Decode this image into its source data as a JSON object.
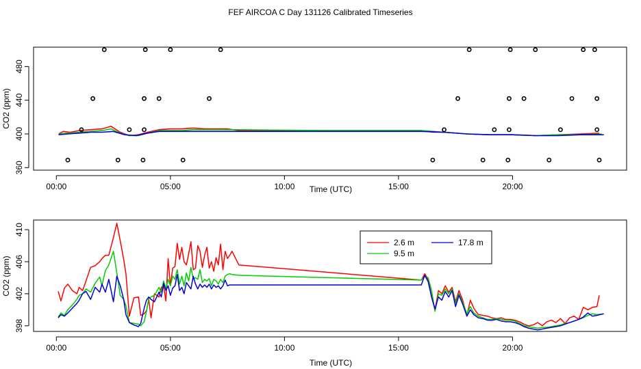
{
  "page_title": "FEF AIRCOA C  Day 131126  Calibrated Timeseries",
  "chart_data": [
    {
      "id": "top",
      "type": "line+scatter",
      "xlabel": "Time (UTC)",
      "ylabel": "CO2 (ppm)",
      "xlim": [
        -1,
        25
      ],
      "ylim": [
        357,
        503
      ],
      "x_ticks": [
        0,
        5,
        10,
        15,
        20
      ],
      "x_tick_labels": [
        "00:00",
        "05:00",
        "10:00",
        "15:00",
        "20:00"
      ],
      "y_ticks": [
        360,
        400,
        440,
        480
      ],
      "y_tick_labels": [
        "360",
        "400",
        "440",
        "480"
      ],
      "series": [
        {
          "name": "2.6 m",
          "color": "#ff0000",
          "x": [
            0.1,
            0.3,
            0.6,
            1.0,
            1.5,
            2.0,
            2.4,
            2.8,
            3.2,
            3.6,
            4.0,
            4.5,
            5.0,
            5.5,
            6.0,
            6.5,
            7.0,
            7.5,
            8.0,
            12.0,
            16.0,
            16.5,
            17.0,
            18.0,
            19.0,
            20.0,
            21.0,
            22.0,
            23.0,
            23.8
          ],
          "y": [
            400,
            403,
            402,
            404,
            405,
            406,
            409,
            402,
            398,
            399,
            402,
            405,
            406,
            406,
            407,
            406,
            406,
            406,
            404,
            404,
            404,
            402,
            402,
            400,
            399,
            399,
            398,
            399,
            400,
            401
          ]
        },
        {
          "name": "9.5 m",
          "color": "#00cc00",
          "x": [
            0.1,
            0.5,
            1.0,
            1.5,
            2.0,
            2.4,
            2.8,
            3.2,
            3.6,
            4.0,
            4.5,
            5.0,
            5.5,
            6.0,
            7.0,
            8.0,
            12.0,
            16.0,
            17.0,
            18.0,
            19.0,
            20.0,
            21.0,
            22.0,
            23.0,
            23.9
          ],
          "y": [
            400,
            401,
            402,
            403,
            404,
            406,
            401,
            398,
            398,
            401,
            404,
            404,
            404,
            405,
            405,
            405,
            404,
            404,
            402,
            400,
            399,
            399,
            398,
            399,
            399,
            400
          ]
        },
        {
          "name": "17.8 m",
          "color": "#0000dd",
          "x": [
            0.1,
            0.5,
            1.0,
            1.5,
            2.0,
            2.5,
            3.0,
            3.5,
            4.0,
            4.5,
            5.0,
            6.0,
            7.0,
            8.0,
            12.0,
            16.0,
            17.0,
            18.0,
            19.0,
            20.0,
            21.0,
            22.0,
            23.0,
            24.0
          ],
          "y": [
            399,
            400,
            401,
            402,
            402,
            403,
            399,
            398,
            401,
            403,
            403,
            403,
            403,
            403,
            403,
            403,
            402,
            400,
            399,
            399,
            398,
            398,
            399,
            399
          ]
        }
      ],
      "points": {
        "x": [
          0.5,
          1.1,
          1.6,
          2.1,
          2.7,
          3.2,
          3.8,
          3.85,
          3.85,
          3.9,
          4.5,
          5.0,
          5.55,
          6.7,
          7.2,
          16.5,
          17.0,
          17.6,
          18.1,
          18.7,
          19.2,
          19.8,
          19.85,
          19.85,
          19.9,
          20.5,
          21.0,
          21.6,
          22.1,
          22.6,
          23.1,
          23.6,
          23.7,
          23.7,
          23.8
        ],
        "y": [
          369,
          405,
          442,
          500,
          369,
          405,
          369,
          405,
          442,
          500,
          442,
          500,
          369,
          442,
          500,
          369,
          405,
          442,
          500,
          369,
          405,
          369,
          405,
          442,
          500,
          442,
          500,
          369,
          405,
          442,
          500,
          500,
          442,
          405,
          369
        ]
      }
    },
    {
      "id": "bottom",
      "type": "line",
      "xlabel": "Time (UTC)",
      "ylabel": "CO2 (ppm)",
      "xlim": [
        -1,
        25
      ],
      "ylim": [
        397.3,
        411.2
      ],
      "x_ticks": [
        0,
        5,
        10,
        15,
        20
      ],
      "x_tick_labels": [
        "00:00",
        "05:00",
        "10:00",
        "15:00",
        "20:00"
      ],
      "y_ticks": [
        398,
        402,
        406,
        410
      ],
      "y_tick_labels": [
        "398",
        "402",
        "406",
        "410"
      ],
      "legend": {
        "entries": [
          "2.6 m",
          "9.5 m",
          "17.8 m"
        ]
      },
      "series": [
        {
          "name": "2.6 m",
          "color": "#ff0000",
          "x": [
            0.08,
            0.2,
            0.35,
            0.5,
            0.7,
            0.9,
            1.0,
            1.15,
            1.3,
            1.5,
            1.7,
            1.9,
            2.0,
            2.15,
            2.3,
            2.5,
            2.65,
            2.8,
            2.95,
            3.05,
            3.2,
            3.4,
            3.6,
            3.7,
            3.85,
            3.95,
            4.05,
            4.15,
            4.3,
            4.5,
            4.6,
            4.7,
            4.8,
            4.9,
            5.0,
            5.1,
            5.2,
            5.3,
            5.4,
            5.5,
            5.6,
            5.7,
            5.8,
            5.9,
            6.0,
            6.1,
            6.2,
            6.3,
            6.4,
            6.5,
            6.6,
            6.7,
            6.8,
            6.9,
            7.0,
            7.1,
            7.2,
            7.3,
            7.4,
            7.5,
            7.6,
            7.7,
            8.0,
            16.0,
            16.15,
            16.3,
            16.45,
            16.6,
            16.75,
            16.9,
            17.05,
            17.2,
            17.35,
            17.5,
            17.65,
            17.8,
            18.0,
            18.15,
            18.3,
            18.5,
            18.7,
            18.9,
            19.1,
            19.3,
            19.5,
            19.7,
            19.9,
            20.1,
            20.3,
            20.5,
            20.7,
            20.9,
            21.1,
            21.3,
            21.5,
            21.7,
            21.9,
            22.1,
            22.3,
            22.5,
            22.7,
            22.9,
            23.1,
            23.3,
            23.5,
            23.7,
            23.8
          ],
          "y": [
            402.3,
            401.1,
            402.7,
            403.2,
            402.4,
            402.0,
            402.8,
            402.4,
            403.6,
            405.3,
            405.5,
            406.0,
            406.4,
            406.8,
            406.8,
            409.0,
            410.8,
            408.6,
            406.3,
            404.5,
            399.2,
            401.5,
            401.6,
            399.3,
            399.5,
            399.9,
            401.3,
            399.0,
            402.0,
            401.6,
            402.8,
            403.0,
            401.1,
            406.4,
            403.0,
            405.2,
            405.4,
            408.3,
            406.3,
            407.8,
            406.0,
            405.6,
            407.0,
            408.5,
            405.0,
            405.2,
            408.0,
            407.3,
            405.3,
            406.8,
            407.8,
            405.2,
            406.0,
            404.8,
            406.5,
            405.6,
            408.2,
            405.0,
            407.3,
            406.4,
            406.8,
            407.3,
            405.6,
            403.7,
            404.5,
            403.8,
            401.6,
            400.0,
            402.4,
            402.0,
            403.0,
            402.2,
            402.8,
            401.0,
            402.4,
            401.3,
            399.3,
            401.2,
            400.2,
            399.4,
            399.3,
            399.2,
            399.0,
            398.9,
            399.0,
            398.8,
            398.8,
            398.7,
            398.5,
            398.2,
            398.0,
            398.1,
            398.4,
            398.0,
            398.5,
            398.7,
            398.4,
            398.9,
            398.3,
            399.0,
            399.2,
            398.8,
            400.3,
            400.0,
            400.3,
            400.4,
            401.8
          ]
        },
        {
          "name": "9.5 m",
          "color": "#00cc00",
          "x": [
            0.08,
            0.2,
            0.35,
            0.5,
            0.7,
            0.9,
            1.0,
            1.15,
            1.3,
            1.5,
            1.7,
            1.9,
            2.0,
            2.15,
            2.3,
            2.5,
            2.65,
            2.8,
            2.95,
            3.05,
            3.2,
            3.4,
            3.6,
            3.7,
            3.85,
            3.95,
            4.05,
            4.15,
            4.3,
            4.5,
            4.6,
            4.7,
            4.8,
            4.9,
            5.0,
            5.1,
            5.2,
            5.3,
            5.4,
            5.5,
            5.6,
            5.7,
            5.8,
            5.9,
            6.0,
            6.1,
            6.2,
            6.3,
            6.4,
            6.5,
            6.6,
            6.7,
            6.8,
            6.9,
            7.0,
            7.1,
            7.2,
            7.3,
            7.4,
            7.5,
            7.6,
            7.7,
            8.0,
            16.0,
            16.15,
            16.3,
            16.45,
            16.6,
            16.75,
            16.9,
            17.05,
            17.2,
            17.35,
            17.5,
            17.65,
            17.8,
            18.0,
            18.15,
            18.3,
            18.5,
            18.7,
            18.9,
            19.1,
            19.3,
            19.5,
            19.7,
            19.9,
            20.1,
            20.3,
            20.5,
            20.7,
            20.9,
            21.1,
            21.3,
            21.5,
            21.7,
            21.9,
            22.1,
            22.3,
            22.5,
            22.7,
            22.9,
            23.1,
            23.3,
            23.5,
            23.7,
            24.0
          ],
          "y": [
            399.1,
            399.6,
            399.3,
            400.0,
            400.6,
            401.3,
            401.8,
            402.0,
            402.6,
            402.2,
            403.3,
            404.1,
            403.0,
            404.9,
            405.6,
            407.3,
            404.6,
            401.8,
            401.3,
            400.5,
            398.4,
            398.3,
            398.2,
            398.0,
            398.5,
            399.8,
            401.4,
            401.6,
            401.8,
            402.8,
            402.2,
            403.6,
            402.6,
            403.8,
            403.0,
            404.2,
            403.8,
            405.0,
            403.2,
            404.2,
            403.0,
            404.6,
            403.6,
            405.3,
            403.8,
            404.0,
            403.8,
            405.0,
            403.4,
            403.8,
            403.6,
            403.9,
            403.0,
            403.8,
            403.6,
            403.2,
            403.8,
            403.4,
            404.2,
            404.4,
            404.5,
            404.4,
            404.3,
            403.7,
            404.2,
            404.0,
            402.4,
            399.8,
            402.0,
            401.8,
            402.6,
            402.0,
            402.6,
            400.8,
            402.0,
            401.0,
            399.5,
            400.4,
            399.6,
            399.2,
            399.0,
            398.8,
            398.8,
            398.9,
            398.8,
            398.7,
            398.7,
            398.6,
            398.3,
            398.0,
            397.9,
            397.8,
            397.7,
            397.8,
            397.8,
            397.9,
            398.0,
            398.1,
            398.3,
            398.4,
            398.6,
            398.8,
            399.0,
            399.3,
            399.5,
            399.4,
            399.5
          ]
        },
        {
          "name": "17.8 m",
          "color": "#0000dd",
          "x": [
            0.08,
            0.2,
            0.35,
            0.5,
            0.7,
            0.9,
            1.0,
            1.15,
            1.3,
            1.5,
            1.7,
            1.9,
            2.0,
            2.15,
            2.3,
            2.5,
            2.65,
            2.8,
            2.95,
            3.05,
            3.2,
            3.4,
            3.6,
            3.7,
            3.85,
            3.95,
            4.05,
            4.15,
            4.3,
            4.5,
            4.6,
            4.7,
            4.8,
            4.9,
            5.0,
            5.1,
            5.2,
            5.3,
            5.4,
            5.5,
            5.6,
            5.7,
            5.8,
            5.9,
            6.0,
            6.1,
            6.2,
            6.3,
            6.4,
            6.5,
            6.6,
            6.7,
            6.8,
            6.9,
            7.0,
            7.1,
            7.2,
            7.3,
            7.4,
            7.5,
            7.6,
            7.7,
            8.0,
            16.0,
            16.15,
            16.3,
            16.45,
            16.6,
            16.75,
            16.9,
            17.05,
            17.2,
            17.35,
            17.5,
            17.65,
            17.8,
            18.0,
            18.15,
            18.3,
            18.5,
            18.7,
            18.9,
            19.1,
            19.3,
            19.5,
            19.7,
            19.9,
            20.1,
            20.3,
            20.5,
            20.7,
            20.9,
            21.1,
            21.3,
            21.5,
            21.7,
            21.9,
            22.1,
            22.3,
            22.5,
            22.7,
            22.9,
            23.1,
            23.3,
            23.5,
            23.7,
            24.0
          ],
          "y": [
            399.0,
            399.4,
            399.2,
            399.6,
            400.2,
            400.8,
            401.2,
            402.0,
            402.3,
            401.3,
            402.8,
            402.2,
            403.2,
            402.2,
            403.8,
            401.0,
            404.2,
            403.0,
            401.3,
            399.4,
            398.4,
            398.1,
            397.9,
            398.3,
            400.2,
            401.2,
            401.6,
            401.3,
            401.0,
            402.2,
            401.6,
            403.3,
            402.4,
            403.0,
            401.8,
            402.7,
            403.0,
            404.4,
            402.4,
            402.8,
            402.0,
            403.4,
            403.0,
            402.6,
            404.2,
            403.2,
            402.6,
            403.2,
            402.8,
            403.1,
            402.8,
            403.2,
            402.6,
            403.1,
            402.8,
            403.0,
            402.6,
            403.0,
            403.7,
            403.0,
            403.1,
            403.1,
            403.1,
            403.1,
            404.3,
            403.5,
            401.6,
            400.1,
            401.6,
            401.2,
            402.3,
            401.6,
            402.4,
            400.4,
            401.8,
            400.8,
            399.2,
            400.0,
            399.4,
            399.0,
            398.9,
            398.7,
            398.7,
            398.8,
            398.6,
            398.5,
            398.5,
            398.4,
            398.2,
            397.9,
            397.7,
            397.6,
            397.5,
            397.6,
            397.7,
            397.8,
            397.9,
            398.0,
            398.2,
            398.4,
            398.6,
            398.8,
            399.1,
            399.6,
            399.2,
            399.3,
            399.5
          ]
        }
      ]
    }
  ]
}
